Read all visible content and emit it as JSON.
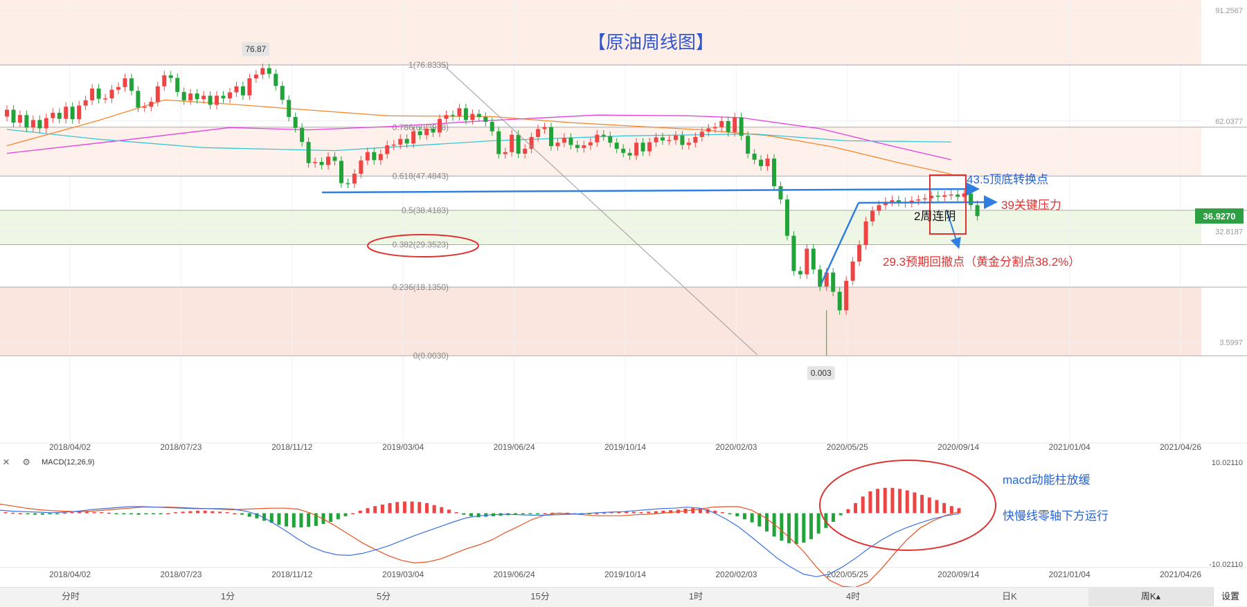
{
  "chart_data": [
    {
      "type": "candlestick",
      "title": "【原油周线图】",
      "x_ticks": [
        "2018/04/02",
        "2018/07/23",
        "2018/11/12",
        "2019/03/04",
        "2019/06/24",
        "2019/10/14",
        "2020/02/03",
        "2020/05/25",
        "2020/09/14",
        "2021/01/04",
        "2021/04/26"
      ],
      "y_range": [
        0.003,
        91.2567
      ],
      "y_axis_labels": [
        "91.2567",
        "62.0377",
        "32.8187",
        "3.5997"
      ],
      "current_price": "36.9270",
      "high_marker": "76.87",
      "low_marker": "0.003",
      "fibonacci_levels": [
        {
          "ratio": "1",
          "value": 76.8335,
          "label": "1(76.8335)"
        },
        {
          "ratio": "0.786",
          "value": 60.3918,
          "label": "0.786(60.3918)"
        },
        {
          "ratio": "0.618",
          "value": 47.4843,
          "label": "0.618(47.4843)"
        },
        {
          "ratio": "0.5",
          "value": 38.4183,
          "label": "0.5(38.4183)"
        },
        {
          "ratio": "0.382",
          "value": 29.3523,
          "label": "0.382(29.3523)"
        },
        {
          "ratio": "0.236",
          "value": 18.135,
          "label": "0.236(18.1350)"
        },
        {
          "ratio": "0",
          "value": 0.003,
          "label": "0(0.0030)"
        }
      ],
      "annotations": [
        "43.5顶底转换点",
        "39关键压力",
        "2周连阴",
        "29.3预期回撤点（黄金分割点38.2%）"
      ],
      "price_series": [
        {
          "o": 63.2,
          "c": 65.0
        },
        {
          "o": 65.0,
          "c": 61.6
        },
        {
          "o": 61.6,
          "c": 63.6
        },
        {
          "o": 63.6,
          "c": 60.3
        },
        {
          "o": 60.3,
          "c": 62.3
        },
        {
          "o": 62.3,
          "c": 60.1
        },
        {
          "o": 60.1,
          "c": 62.8
        },
        {
          "o": 62.8,
          "c": 64.2
        },
        {
          "o": 64.2,
          "c": 62.6
        },
        {
          "o": 62.6,
          "c": 65.8
        },
        {
          "o": 65.8,
          "c": 62.5
        },
        {
          "o": 62.5,
          "c": 66.1
        },
        {
          "o": 66.1,
          "c": 67.5
        },
        {
          "o": 67.5,
          "c": 70.6
        },
        {
          "o": 70.6,
          "c": 67.9
        },
        {
          "o": 67.9,
          "c": 68.0
        },
        {
          "o": 68.0,
          "c": 70.3
        },
        {
          "o": 70.3,
          "c": 71.0
        },
        {
          "o": 71.0,
          "c": 73.3
        },
        {
          "o": 73.3,
          "c": 70.0
        },
        {
          "o": 70.0,
          "c": 65.6
        },
        {
          "o": 65.6,
          "c": 65.8
        },
        {
          "o": 65.8,
          "c": 67.1
        },
        {
          "o": 67.1,
          "c": 71.2
        },
        {
          "o": 71.2,
          "c": 74.1
        },
        {
          "o": 74.1,
          "c": 73.4
        },
        {
          "o": 73.4,
          "c": 69.7
        },
        {
          "o": 69.7,
          "c": 67.5
        },
        {
          "o": 67.5,
          "c": 69.3
        },
        {
          "o": 69.3,
          "c": 67.8
        },
        {
          "o": 67.8,
          "c": 68.7
        },
        {
          "o": 68.7,
          "c": 66.3
        },
        {
          "o": 66.3,
          "c": 68.7
        },
        {
          "o": 68.7,
          "c": 68.0
        },
        {
          "o": 68.0,
          "c": 69.6
        },
        {
          "o": 69.6,
          "c": 71.2
        },
        {
          "o": 71.2,
          "c": 68.8
        },
        {
          "o": 68.8,
          "c": 73.3
        },
        {
          "o": 73.3,
          "c": 74.3
        },
        {
          "o": 74.3,
          "c": 76.0
        },
        {
          "o": 76.0,
          "c": 74.5
        },
        {
          "o": 74.5,
          "c": 71.3
        },
        {
          "o": 71.3,
          "c": 67.6
        },
        {
          "o": 67.6,
          "c": 63.1
        },
        {
          "o": 63.1,
          "c": 60.2
        },
        {
          "o": 60.2,
          "c": 56.5
        },
        {
          "o": 56.5,
          "c": 50.9
        },
        {
          "o": 50.9,
          "c": 51.2
        },
        {
          "o": 51.2,
          "c": 50.4
        },
        {
          "o": 50.4,
          "c": 52.6
        },
        {
          "o": 52.6,
          "c": 51.5
        },
        {
          "o": 51.5,
          "c": 45.6
        },
        {
          "o": 45.6,
          "c": 45.5
        },
        {
          "o": 45.5,
          "c": 48.1
        },
        {
          "o": 48.1,
          "c": 51.6
        },
        {
          "o": 51.6,
          "c": 53.8
        },
        {
          "o": 53.8,
          "c": 51.7
        },
        {
          "o": 51.7,
          "c": 53.3
        },
        {
          "o": 53.3,
          "c": 55.6
        },
        {
          "o": 55.6,
          "c": 55.8
        },
        {
          "o": 55.8,
          "c": 57.3
        },
        {
          "o": 57.3,
          "c": 56.1
        },
        {
          "o": 56.1,
          "c": 59.3
        },
        {
          "o": 59.3,
          "c": 58.3
        },
        {
          "o": 58.3,
          "c": 60.0
        },
        {
          "o": 60.0,
          "c": 59.0
        },
        {
          "o": 59.0,
          "c": 62.6
        },
        {
          "o": 62.6,
          "c": 63.6
        },
        {
          "o": 63.6,
          "c": 63.3
        },
        {
          "o": 63.3,
          "c": 65.4
        },
        {
          "o": 65.4,
          "c": 62.3
        },
        {
          "o": 62.3,
          "c": 63.9
        },
        {
          "o": 63.9,
          "c": 63.1
        },
        {
          "o": 63.1,
          "c": 61.8
        },
        {
          "o": 61.8,
          "c": 59.3
        },
        {
          "o": 59.3,
          "c": 53.3
        },
        {
          "o": 53.3,
          "c": 53.8
        },
        {
          "o": 53.8,
          "c": 58.4
        },
        {
          "o": 58.4,
          "c": 53.4
        },
        {
          "o": 53.4,
          "c": 54.7
        },
        {
          "o": 54.7,
          "c": 57.8
        },
        {
          "o": 57.8,
          "c": 59.9
        },
        {
          "o": 59.9,
          "c": 60.4
        },
        {
          "o": 60.4,
          "c": 55.4
        },
        {
          "o": 55.4,
          "c": 56.3
        },
        {
          "o": 56.3,
          "c": 57.6
        },
        {
          "o": 57.6,
          "c": 55.7
        },
        {
          "o": 55.7,
          "c": 54.9
        },
        {
          "o": 54.9,
          "c": 55.6
        },
        {
          "o": 55.6,
          "c": 56.4
        },
        {
          "o": 56.4,
          "c": 58.4
        },
        {
          "o": 58.4,
          "c": 58.0
        },
        {
          "o": 58.0,
          "c": 56.3
        },
        {
          "o": 56.3,
          "c": 54.7
        },
        {
          "o": 54.7,
          "c": 53.6
        },
        {
          "o": 53.6,
          "c": 52.9
        },
        {
          "o": 52.9,
          "c": 56.3
        },
        {
          "o": 56.3,
          "c": 54.0
        },
        {
          "o": 54.0,
          "c": 56.4
        },
        {
          "o": 56.4,
          "c": 57.7
        },
        {
          "o": 57.7,
          "c": 56.9
        },
        {
          "o": 56.9,
          "c": 57.0
        },
        {
          "o": 57.0,
          "c": 58.2
        },
        {
          "o": 58.2,
          "c": 55.7
        },
        {
          "o": 55.7,
          "c": 56.3
        },
        {
          "o": 56.3,
          "c": 57.8
        },
        {
          "o": 57.8,
          "c": 59.2
        },
        {
          "o": 59.2,
          "c": 60.1
        },
        {
          "o": 60.1,
          "c": 60.4
        },
        {
          "o": 60.4,
          "c": 62.0
        },
        {
          "o": 62.0,
          "c": 59.1
        },
        {
          "o": 59.1,
          "c": 63.0
        },
        {
          "o": 63.0,
          "c": 58.1
        },
        {
          "o": 58.1,
          "c": 53.4
        },
        {
          "o": 53.4,
          "c": 51.8
        },
        {
          "o": 51.8,
          "c": 50.1
        },
        {
          "o": 50.1,
          "c": 52.1
        },
        {
          "o": 52.1,
          "c": 44.8
        },
        {
          "o": 44.8,
          "c": 41.3
        },
        {
          "o": 41.3,
          "c": 31.7
        },
        {
          "o": 31.7,
          "c": 22.4
        },
        {
          "o": 22.4,
          "c": 21.5
        },
        {
          "o": 21.5,
          "c": 28.3
        },
        {
          "o": 28.3,
          "c": 22.8
        },
        {
          "o": 22.8,
          "c": 18.3
        },
        {
          "o": 18.3,
          "c": 22.0
        },
        {
          "o": 22.0,
          "c": 16.9
        },
        {
          "o": 16.9,
          "c": 12.0
        },
        {
          "o": 12.0,
          "c": 19.8
        },
        {
          "o": 19.8,
          "c": 24.9
        },
        {
          "o": 24.9,
          "c": 29.3
        },
        {
          "o": 29.3,
          "c": 35.5
        },
        {
          "o": 35.5,
          "c": 38.3
        },
        {
          "o": 38.3,
          "c": 39.8
        },
        {
          "o": 39.8,
          "c": 40.7
        },
        {
          "o": 40.7,
          "c": 41.1
        },
        {
          "o": 41.1,
          "c": 40.6
        },
        {
          "o": 40.6,
          "c": 40.3
        },
        {
          "o": 40.3,
          "c": 41.0
        },
        {
          "o": 41.0,
          "c": 41.3
        },
        {
          "o": 41.3,
          "c": 41.6
        },
        {
          "o": 41.6,
          "c": 42.3
        },
        {
          "o": 42.3,
          "c": 42.0
        },
        {
          "o": 42.0,
          "c": 42.4
        },
        {
          "o": 42.4,
          "c": 42.6
        },
        {
          "o": 42.6,
          "c": 42.0
        },
        {
          "o": 42.0,
          "c": 42.9
        },
        {
          "o": 42.9,
          "c": 39.8
        },
        {
          "o": 39.8,
          "c": 36.9
        }
      ],
      "moving_averages": [
        {
          "name": "MA-orange",
          "color": "#f5872d",
          "points": [
            [
              0,
              55.5
            ],
            [
              14,
              62.2
            ],
            [
              24,
              67.6
            ],
            [
              34,
              66.5
            ],
            [
              44,
              65.2
            ],
            [
              58,
              63.4
            ],
            [
              74,
              63.2
            ],
            [
              86,
              61.6
            ],
            [
              106,
              59.7
            ],
            [
              116,
              58.2
            ],
            [
              126,
              55.2
            ],
            [
              136,
              51.0
            ],
            [
              144,
              48.0
            ]
          ]
        },
        {
          "name": "MA-magenta",
          "color": "#e53fe3",
          "points": [
            [
              0,
              53.5
            ],
            [
              18,
              57.0
            ],
            [
              34,
              60.3
            ],
            [
              46,
              59.7
            ],
            [
              60,
              60.7
            ],
            [
              74,
              62.2
            ],
            [
              90,
              63.6
            ],
            [
              104,
              63.4
            ],
            [
              112,
              62.9
            ],
            [
              124,
              60.0
            ],
            [
              136,
              55.0
            ],
            [
              144,
              51.8
            ]
          ]
        },
        {
          "name": "MA-cyan",
          "color": "#36c7d4",
          "points": [
            [
              0,
              59.8
            ],
            [
              14,
              57.2
            ],
            [
              30,
              55.0
            ],
            [
              50,
              54.2
            ],
            [
              74,
              56.8
            ],
            [
              94,
              58.1
            ],
            [
              114,
              58.6
            ],
            [
              128,
              56.8
            ],
            [
              144,
              56.5
            ]
          ]
        }
      ]
    },
    {
      "type": "macd",
      "title": "MACD(12,26,9)",
      "y_axis_labels": [
        "10.02110",
        "-10.02110"
      ],
      "y_range": [
        -10.0211,
        10.0211
      ],
      "histogram": [
        0.2,
        0.1,
        0.0,
        -0.2,
        -0.3,
        -0.3,
        -0.2,
        -0.1,
        0.1,
        0.2,
        0.3,
        0.3,
        0.2,
        0.2,
        0.1,
        -0.1,
        -0.2,
        -0.2,
        -0.3,
        -0.2,
        -0.2,
        -0.1,
        0.0,
        0.2,
        0.3,
        0.4,
        0.5,
        0.5,
        0.4,
        0.3,
        0.2,
        0.0,
        -0.3,
        -0.7,
        -1.0,
        -1.5,
        -1.9,
        -2.3,
        -2.6,
        -2.8,
        -2.8,
        -2.7,
        -2.5,
        -2.1,
        -1.7,
        -1.2,
        -0.6,
        0.0,
        0.5,
        1.0,
        1.4,
        1.7,
        2.0,
        2.2,
        2.3,
        2.3,
        2.2,
        2.0,
        1.6,
        1.2,
        0.7,
        0.2,
        -0.3,
        -0.6,
        -0.8,
        -0.7,
        -0.6,
        -0.5,
        -0.4,
        -0.3,
        -0.2,
        -0.2,
        -0.1,
        0.0,
        0.1,
        0.1,
        0.1,
        0.0,
        -0.1,
        -0.1,
        0.0,
        0.1,
        0.2,
        0.3,
        0.3,
        0.3,
        0.2,
        0.3,
        0.4,
        0.5,
        0.6,
        0.7,
        0.9,
        1.0,
        1.0,
        0.8,
        0.5,
        0.2,
        -0.2,
        -0.6,
        -1.2,
        -1.8,
        -2.6,
        -3.6,
        -4.6,
        -5.4,
        -5.9,
        -6.1,
        -5.8,
        -5.1,
        -4.0,
        -2.9,
        -1.7,
        -0.4,
        0.8,
        2.0,
        3.3,
        4.3,
        4.8,
        5.0,
        5.0,
        4.8,
        4.5,
        4.1,
        3.6,
        3.1,
        2.6,
        2.0,
        1.4,
        1.0
      ],
      "dif": [
        1.8,
        1.4,
        1.0,
        0.7,
        0.5,
        0.4,
        0.3,
        0.4,
        0.6,
        0.8,
        1.0,
        1.2,
        1.2,
        1.2,
        1.1,
        1.0,
        0.9,
        0.8,
        0.7,
        0.8,
        0.9,
        1.0,
        1.0,
        0.8,
        0.0,
        -1.2,
        -2.7,
        -4.3,
        -5.9,
        -7.2,
        -8.4,
        -9.3,
        -9.8,
        -9.6,
        -9.0,
        -8.0,
        -7.0,
        -6.2,
        -5.2,
        -3.8,
        -2.6,
        -1.3,
        -0.4,
        0.0,
        -0.1,
        -0.3,
        -0.5,
        -0.5,
        -0.5,
        -0.3,
        -0.2,
        0.0,
        0.2,
        0.5,
        0.8,
        1.2,
        1.3,
        1.3,
        0.6,
        -0.8,
        -2.7,
        -5.0,
        -7.5,
        -10.6,
        -13.2,
        -14.4,
        -14.6,
        -13.6,
        -11.0,
        -8.0,
        -5.2,
        -2.9,
        -1.5,
        -0.4,
        0.3
      ],
      "dea": [
        0.6,
        0.4,
        0.3,
        0.2,
        0.1,
        0.2,
        0.4,
        0.7,
        0.9,
        1.1,
        1.3,
        1.3,
        1.2,
        1.1,
        1.0,
        0.9,
        0.9,
        0.9,
        0.8,
        0.4,
        -0.4,
        -1.8,
        -3.4,
        -5.1,
        -6.6,
        -7.6,
        -8.2,
        -8.3,
        -7.9,
        -7.2,
        -6.4,
        -5.4,
        -4.4,
        -3.5,
        -2.6,
        -1.7,
        -0.9,
        -0.5,
        -0.3,
        -0.2,
        -0.3,
        -0.4,
        -0.4,
        -0.3,
        -0.2,
        -0.1,
        0.1,
        0.2,
        0.3,
        0.5,
        0.7,
        0.9,
        1.0,
        1.2,
        1.0,
        0.2,
        -1.1,
        -2.7,
        -4.7,
        -6.8,
        -8.9,
        -10.6,
        -12.0,
        -12.5,
        -12.0,
        -10.6,
        -8.9,
        -7.0,
        -5.3,
        -3.9,
        -2.8,
        -1.9,
        -1.1,
        -0.5,
        -0.1
      ]
    }
  ],
  "macd_annotations": [
    "macd动能柱放缓",
    "快慢线零轴下方运行"
  ],
  "timeframes": [
    "分时",
    "1分",
    "5分",
    "15分",
    "1时",
    "4时",
    "日K",
    "周K▴"
  ],
  "active_timeframe_index": 7,
  "settings_label": "设置",
  "macd_header": {
    "close_icon": "✕",
    "gear_icon": "⚙",
    "label": "MACD(12,26,9)"
  },
  "colors": {
    "up": "#ef4444",
    "down": "#22a33a",
    "arrow": "#2f7fe0",
    "annotation_red": "#e03131",
    "annotation_blue": "#2563d6",
    "title": "#3355cc",
    "price_tag": "#2ea043"
  }
}
